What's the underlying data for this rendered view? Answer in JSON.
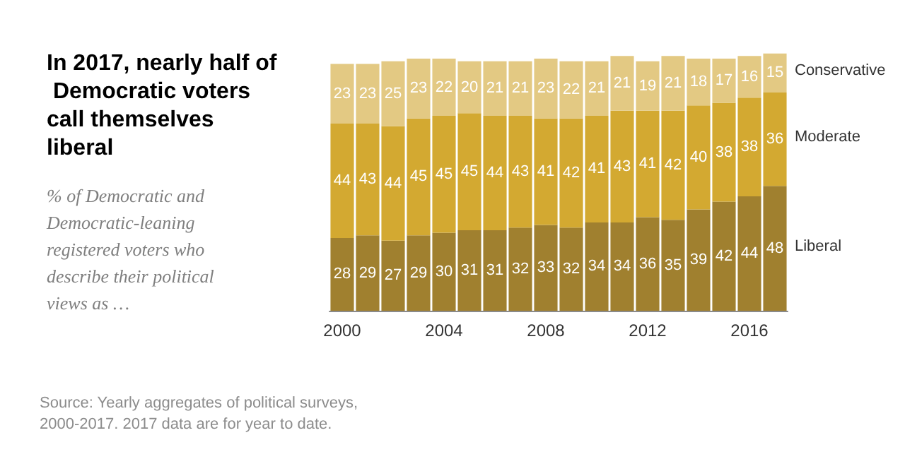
{
  "chart_data": {
    "type": "bar",
    "title": "In 2017, nearly half of Democratic voters call themselves liberal",
    "subtitle": "% of Democratic and Democratic-leaning registered voters who describe their political views as …",
    "categories": [
      "2000",
      null,
      null,
      null,
      "2004",
      null,
      null,
      null,
      "2008",
      null,
      null,
      null,
      "2012",
      null,
      null,
      null,
      "2016",
      null
    ],
    "series": [
      {
        "name": "Liberal",
        "color": "#a0802f",
        "values": [
          28,
          29,
          27,
          29,
          30,
          31,
          31,
          32,
          33,
          32,
          34,
          34,
          36,
          35,
          39,
          42,
          44,
          48
        ]
      },
      {
        "name": "Moderate",
        "color": "#d3a931",
        "values": [
          44,
          43,
          44,
          45,
          45,
          45,
          44,
          43,
          41,
          42,
          41,
          43,
          41,
          42,
          40,
          38,
          38,
          36
        ]
      },
      {
        "name": "Conservative",
        "color": "#e3c983",
        "values": [
          23,
          23,
          25,
          23,
          22,
          20,
          21,
          21,
          23,
          22,
          21,
          21,
          19,
          21,
          18,
          17,
          16,
          15
        ]
      }
    ],
    "stacked": true,
    "data_labels": true,
    "legend": false,
    "ylim": [
      0,
      100
    ],
    "tick_labels": "x",
    "annotations": [
      "Source: Yearly aggregates of political surveys, 2000-2017. 2017 data are for year to date."
    ]
  }
}
